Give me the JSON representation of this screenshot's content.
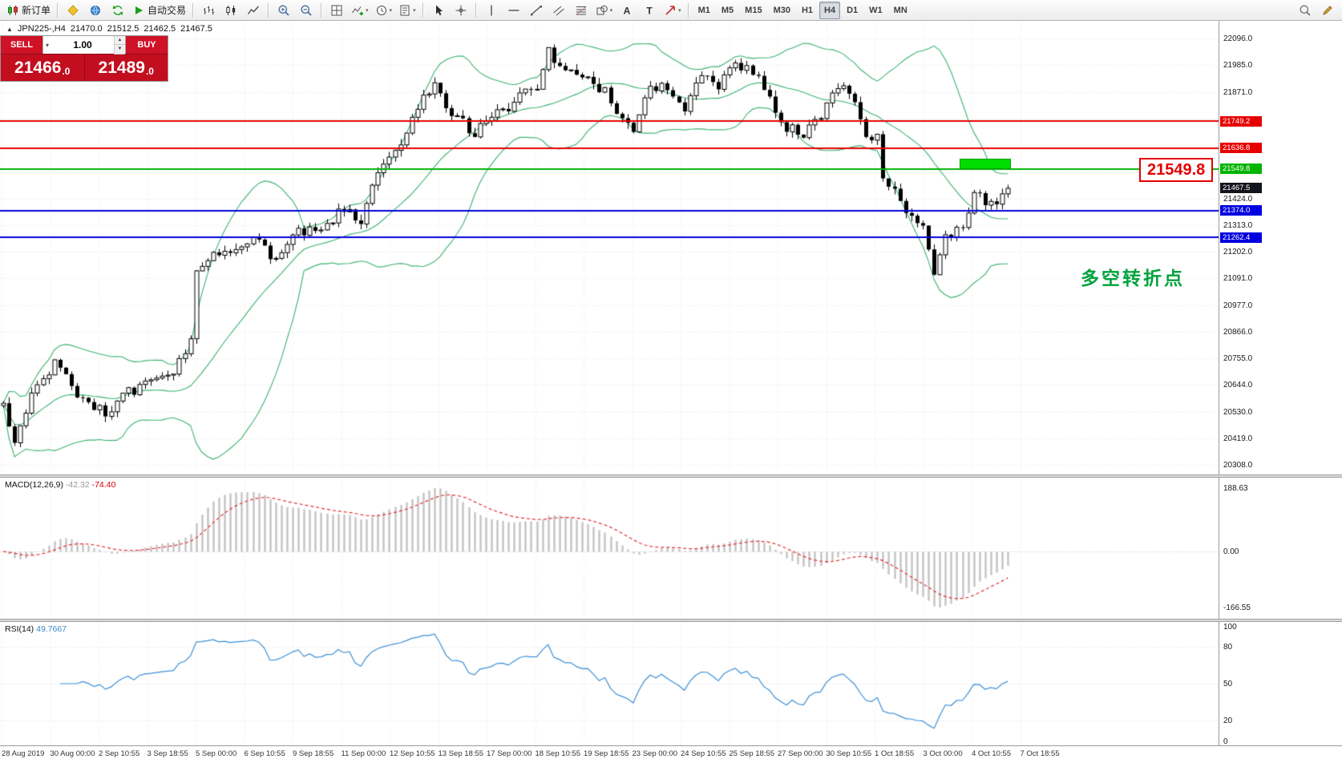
{
  "toolbar": {
    "groups": [
      {
        "items": [
          {
            "name": "new-order-button",
            "icon": "new-order-icon",
            "label": "新订单"
          }
        ]
      },
      {
        "items": [
          {
            "name": "metaeditor-button",
            "icon": "metaeditor-icon"
          },
          {
            "name": "market-button",
            "icon": "market-icon"
          },
          {
            "name": "signals-button",
            "icon": "signals-icon"
          },
          {
            "name": "auto-trading-button",
            "icon": "play-icon",
            "label": "自动交易"
          }
        ]
      },
      {
        "items": [
          {
            "name": "bar-chart-button",
            "icon": "bar-chart-icon"
          },
          {
            "name": "candlestick-chart-button",
            "icon": "candlestick-icon"
          },
          {
            "name": "line-chart-button",
            "icon": "line-chart-icon"
          }
        ]
      },
      {
        "items": [
          {
            "name": "zoom-in-button",
            "icon": "zoom-in-icon"
          },
          {
            "name": "zoom-out-button",
            "icon": "zoom-out-icon"
          }
        ]
      },
      {
        "items": [
          {
            "name": "tile-windows-button",
            "icon": "tile-windows-icon"
          },
          {
            "name": "indicators-button",
            "icon": "indicators-icon",
            "dropdown": true
          },
          {
            "name": "periods-button",
            "icon": "clock-icon",
            "dropdown": true
          },
          {
            "name": "templates-button",
            "icon": "template-icon",
            "dropdown": true
          }
        ]
      },
      {
        "items": [
          {
            "name": "cursor-button",
            "icon": "cursor-icon"
          },
          {
            "name": "crosshair-button",
            "icon": "crosshair-icon"
          }
        ]
      },
      {
        "items": [
          {
            "name": "vertical-line-button",
            "icon": "vertical-line-icon"
          },
          {
            "name": "horizontal-line-button",
            "icon": "horizontal-line-icon"
          },
          {
            "name": "trendline-button",
            "icon": "trendline-icon"
          },
          {
            "name": "channel-button",
            "icon": "channel-icon"
          },
          {
            "name": "fibonacci-button",
            "icon": "fibonacci-icon"
          },
          {
            "name": "shapes-button",
            "icon": "shapes-icon",
            "dropdown": true
          },
          {
            "name": "text-button",
            "icon": "text-a-icon"
          },
          {
            "name": "label-button",
            "icon": "text-t-icon"
          },
          {
            "name": "arrows-button",
            "icon": "arrow-icon",
            "dropdown": true
          }
        ]
      },
      {
        "items": [
          {
            "name": "timeframe-m1-button",
            "label": "M1",
            "tf": true
          },
          {
            "name": "timeframe-m5-button",
            "label": "M5",
            "tf": true
          },
          {
            "name": "timeframe-m15-button",
            "label": "M15",
            "tf": true
          },
          {
            "name": "timeframe-m30-button",
            "label": "M30",
            "tf": true
          },
          {
            "name": "timeframe-h1-button",
            "label": "H1",
            "tf": true
          },
          {
            "name": "timeframe-h4-button",
            "label": "H4",
            "tf": true,
            "active": true
          },
          {
            "name": "timeframe-d1-button",
            "label": "D1",
            "tf": true
          },
          {
            "name": "timeframe-w1-button",
            "label": "W1",
            "tf": true
          },
          {
            "name": "timeframe-mn-button",
            "label": "MN",
            "tf": true
          }
        ]
      }
    ],
    "right_items": [
      {
        "name": "search-button",
        "icon": "search-icon"
      },
      {
        "name": "edit-button",
        "icon": "pencil-icon"
      }
    ]
  },
  "chart": {
    "header": {
      "marker": "▲",
      "symbol_period": "JPN225-,H4",
      "open": "21470.0",
      "high": "21512.5",
      "low": "21462.5",
      "close": "21467.5"
    },
    "trade_panel": {
      "sell_label": "SELL",
      "buy_label": "BUY",
      "volume": "1.00",
      "sell_price_main": "21466",
      "sell_price_frac": ".0",
      "buy_price_main": "21489",
      "buy_price_frac": ".0"
    },
    "callout_label": "21549.8",
    "annotation_text": "多空转折点",
    "axis_labels": [
      {
        "t": "22096.0",
        "p": 22096
      },
      {
        "t": "21985.0",
        "p": 21985
      },
      {
        "t": "21871.0",
        "p": 21871
      },
      {
        "t": "21424.0",
        "p": 21424
      },
      {
        "t": "21313.0",
        "p": 21313
      },
      {
        "t": "21202.0",
        "p": 21202
      },
      {
        "t": "21091.0",
        "p": 21091
      },
      {
        "t": "20977.0",
        "p": 20977
      },
      {
        "t": "20866.0",
        "p": 20866
      },
      {
        "t": "20755.0",
        "p": 20755
      },
      {
        "t": "20644.0",
        "p": 20644
      },
      {
        "t": "20530.0",
        "p": 20530
      },
      {
        "t": "20419.0",
        "p": 20419
      },
      {
        "t": "20308.0",
        "p": 20308
      }
    ],
    "grid_prices": [
      22096,
      21985,
      21871,
      21760,
      21649,
      21535,
      21424,
      21313,
      21202,
      21091,
      20977,
      20866,
      20755,
      20644,
      20530,
      20419,
      20308
    ],
    "levels": [
      {
        "price": 21749.2,
        "label": "21749.2",
        "color": "#e60000"
      },
      {
        "price": 21636.8,
        "label": "21636.8",
        "color": "#e60000"
      },
      {
        "price": 21549.8,
        "label": "21549.8",
        "color": "#00b400"
      },
      {
        "price": 21374.0,
        "label": "21374.0",
        "color": "#0000e0"
      },
      {
        "price": 21262.4,
        "label": "21262.4",
        "color": "#0000e0"
      }
    ],
    "current_price": {
      "price": 21467.5,
      "label": "21467.5",
      "color": "#14141e"
    },
    "highlight_box": {
      "start_index": 168.5,
      "end_index": 177.5,
      "price_top": 21593,
      "price_bottom": 21549
    }
  },
  "chart_data": {
    "type": "candlestick",
    "symbol": "JPN225-",
    "timeframe": "H4",
    "ohlc_last": {
      "open": 21470.0,
      "high": 21512.5,
      "low": 21462.5,
      "close": 21467.5
    },
    "candle_count": 178,
    "price_axis_range": [
      20308,
      22096
    ],
    "horizontal_levels": [
      21749.2,
      21636.8,
      21549.8,
      21374.0,
      21262.4
    ],
    "overlays": [
      {
        "name": "Bollinger Bands",
        "period": 20,
        "deviation": 2
      }
    ],
    "indicators": [
      {
        "name": "MACD",
        "params": "12,26,9",
        "values": [
          -42.32,
          -74.4
        ],
        "scale": [
          188.63,
          0.0,
          -166.55
        ]
      },
      {
        "name": "RSI",
        "params": "14",
        "value": 49.7667,
        "scale": [
          100,
          80,
          50,
          20,
          0
        ]
      }
    ],
    "approx_close_path": [
      [
        0,
        20560
      ],
      [
        2,
        20400
      ],
      [
        5,
        20610
      ],
      [
        9,
        20740
      ],
      [
        13,
        20610
      ],
      [
        16,
        20560
      ],
      [
        18,
        20520
      ],
      [
        22,
        20610
      ],
      [
        26,
        20650
      ],
      [
        30,
        20700
      ],
      [
        33,
        20820
      ],
      [
        34,
        21100
      ],
      [
        36,
        21170
      ],
      [
        40,
        21200
      ],
      [
        45,
        21250
      ],
      [
        48,
        21160
      ],
      [
        52,
        21280
      ],
      [
        56,
        21300
      ],
      [
        60,
        21380
      ],
      [
        63,
        21340
      ],
      [
        65,
        21480
      ],
      [
        68,
        21600
      ],
      [
        71,
        21700
      ],
      [
        74,
        21850
      ],
      [
        76,
        21900
      ],
      [
        79,
        21780
      ],
      [
        83,
        21700
      ],
      [
        86,
        21760
      ],
      [
        90,
        21830
      ],
      [
        94,
        21900
      ],
      [
        96,
        22040
      ],
      [
        98,
        21970
      ],
      [
        100,
        21950
      ],
      [
        103,
        21920
      ],
      [
        106,
        21870
      ],
      [
        109,
        21750
      ],
      [
        111,
        21700
      ],
      [
        114,
        21900
      ],
      [
        117,
        21880
      ],
      [
        120,
        21800
      ],
      [
        123,
        21930
      ],
      [
        126,
        21900
      ],
      [
        129,
        21990
      ],
      [
        132,
        21960
      ],
      [
        135,
        21850
      ],
      [
        138,
        21720
      ],
      [
        141,
        21700
      ],
      [
        144,
        21780
      ],
      [
        147,
        21900
      ],
      [
        149,
        21870
      ],
      [
        152,
        21700
      ],
      [
        154,
        21680
      ],
      [
        155,
        21500
      ],
      [
        157,
        21450
      ],
      [
        160,
        21350
      ],
      [
        162,
        21300
      ],
      [
        164,
        21100
      ],
      [
        166,
        21280
      ],
      [
        169,
        21290
      ],
      [
        171,
        21460
      ],
      [
        173,
        21400
      ],
      [
        175,
        21380
      ],
      [
        177,
        21467.5
      ]
    ]
  },
  "macd": {
    "label": "MACD(12,26,9)",
    "value1": "-42.32",
    "value2": "-74.40",
    "scale_labels": [
      "188.63",
      "0.00",
      "-166.55"
    ],
    "scale_values": [
      188.63,
      0,
      -166.55
    ]
  },
  "rsi": {
    "label": "RSI(14)",
    "value": "49.7667",
    "scale_labels": [
      "100",
      "80",
      "50",
      "20",
      "0"
    ],
    "scale_values": [
      100,
      80,
      50,
      20,
      0
    ]
  },
  "time_axis": {
    "labels": [
      "28 Aug 2019",
      "30 Aug 00:00",
      "2 Sep 10:55",
      "3 Sep 18:55",
      "5 Sep 00:00",
      "6 Sep 10:55",
      "9 Sep 18:55",
      "11 Sep 00:00",
      "12 Sep 10:55",
      "13 Sep 18:55",
      "17 Sep 00:00",
      "18 Sep 10:55",
      "19 Sep 18:55",
      "23 Sep 00:00",
      "24 Sep 10:55",
      "25 Sep 18:55",
      "27 Sep 00:00",
      "30 Sep 10:55",
      "1 Oct 18:55",
      "3 Oct 00:00",
      "4 Oct 10:55",
      "7 Oct 18:55"
    ]
  }
}
